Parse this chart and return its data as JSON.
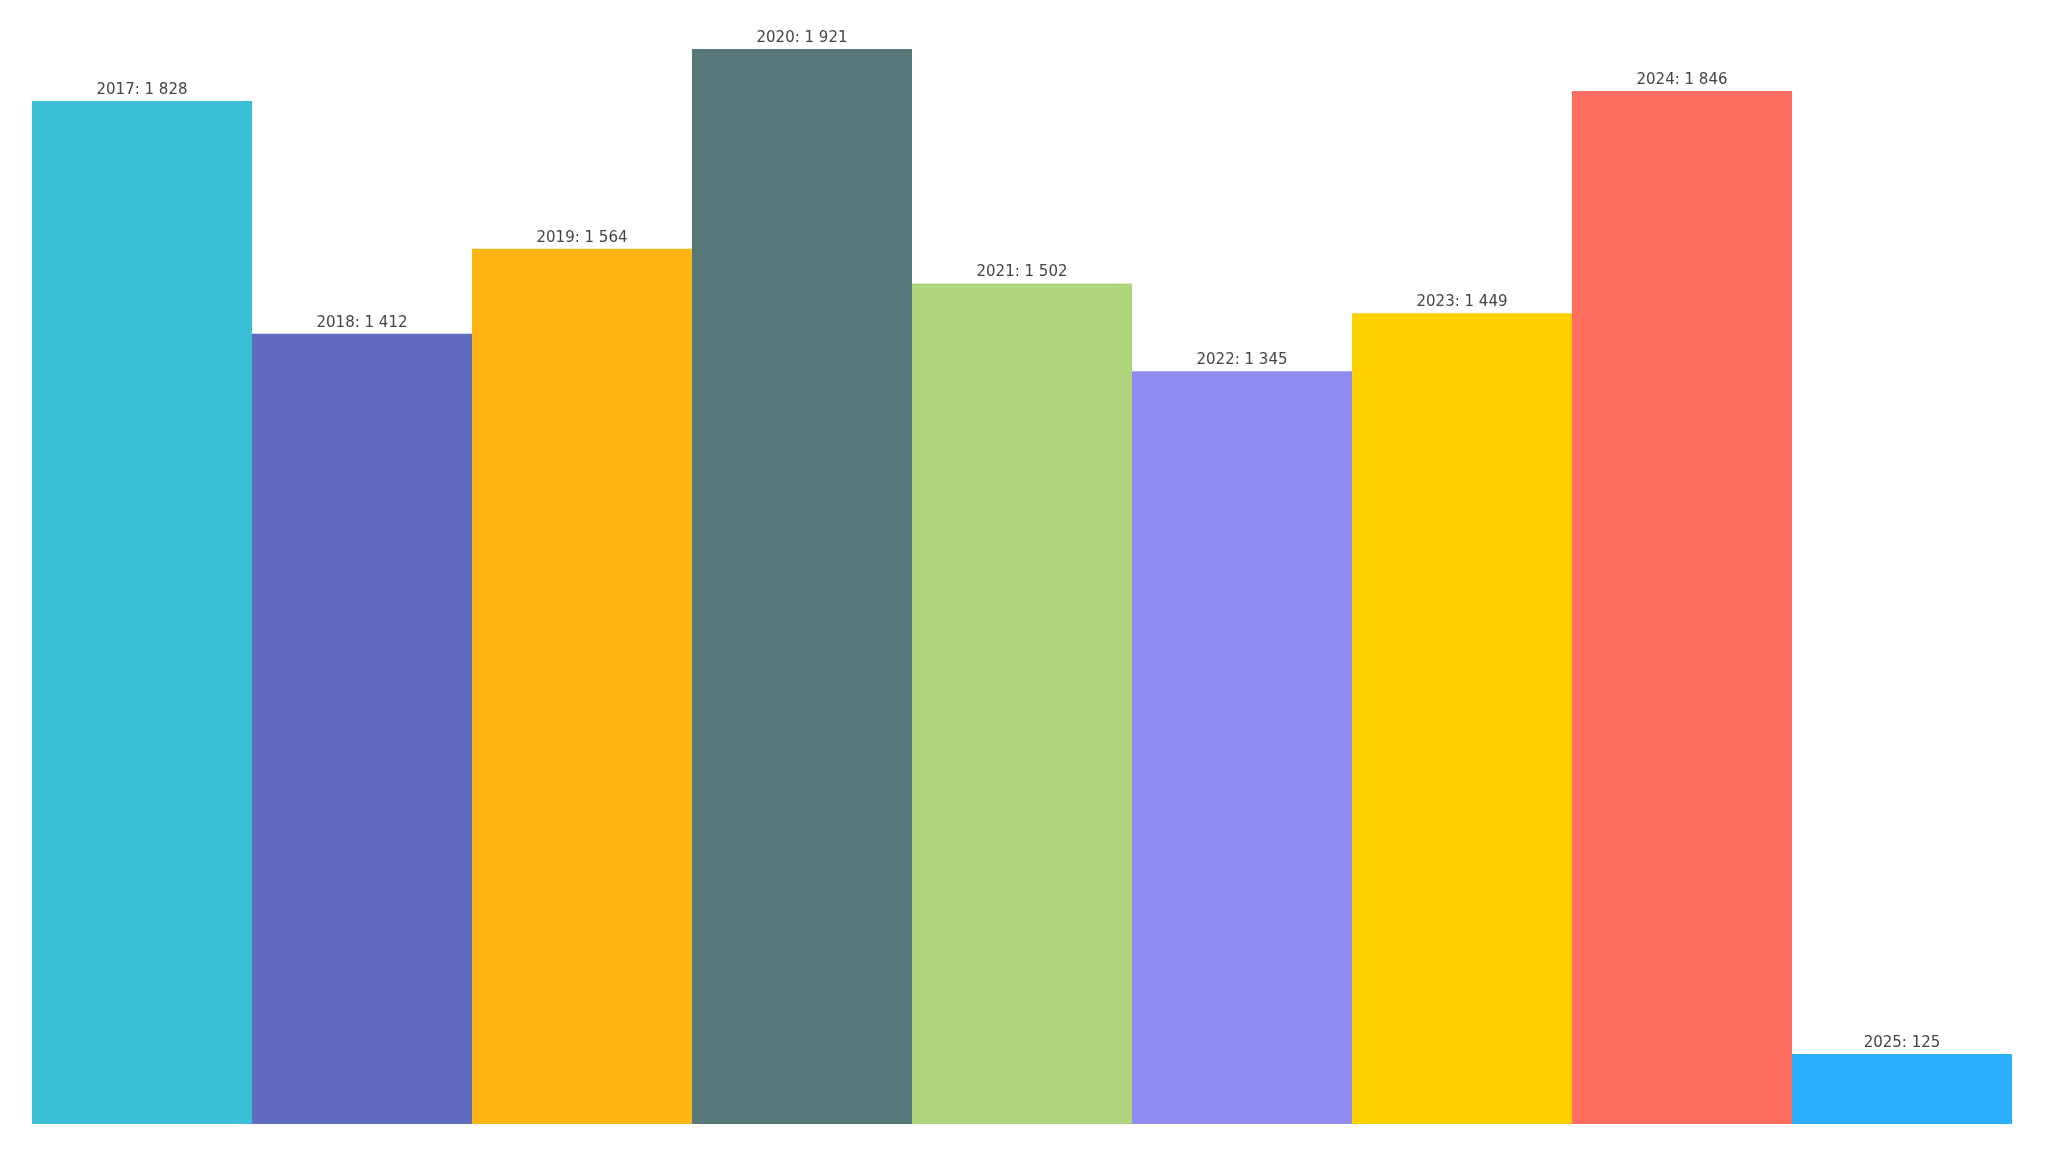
{
  "chart_data": {
    "type": "bar",
    "categories": [
      null,
      null,
      null,
      null,
      null,
      null,
      null,
      null,
      null
    ],
    "values": [
      1828,
      1412,
      1564,
      1921,
      1502,
      1345,
      1449,
      1846,
      125
    ],
    "colors": [
      "#3bbfd6",
      "#5e6bbf",
      "#fdb614",
      "#567878",
      "#aed57c",
      "#8f8bef",
      "#ffd000",
      "#ff6d60",
      "#2aaffe"
    ],
    "value_labels": [
      "2017: 1 828",
      "2018: 1 412",
      "2019: 1 564",
      "2020: 1 921",
      "2021: 1 502",
      "2022: 1 345",
      "2023: 1 449",
      "2024: 1 846",
      "2025: 125"
    ],
    "tick_labels": false,
    "grid": false,
    "legend": false
  }
}
